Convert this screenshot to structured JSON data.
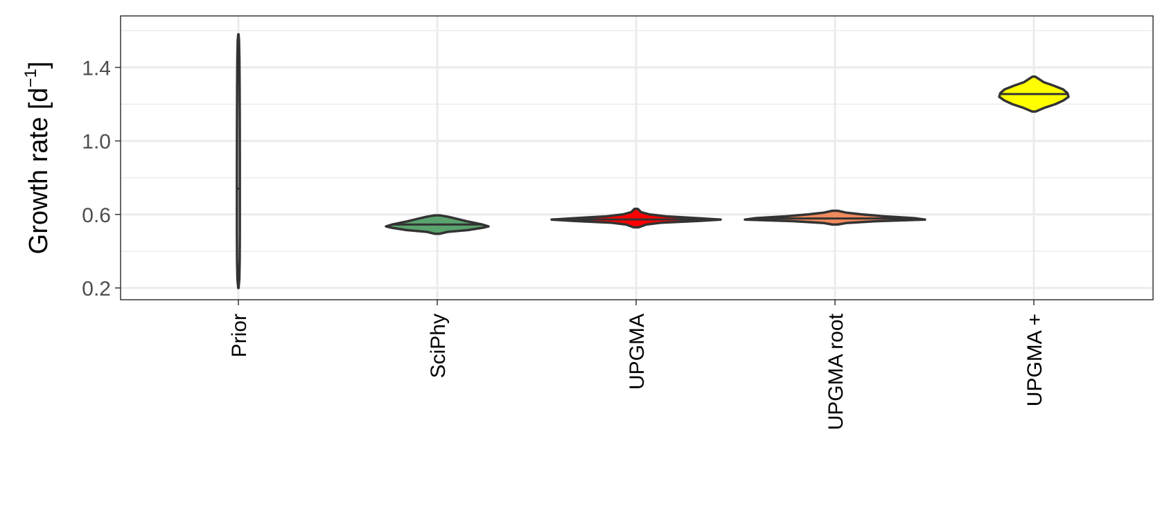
{
  "chart_data": {
    "type": "violin",
    "ylabel": "Growth rate [d",
    "ylabel_superscript": "−1",
    "ylabel_suffix": "]",
    "xlabel": "",
    "ylim": [
      0.14,
      1.67
    ],
    "y_major_ticks": [
      0.2,
      0.6,
      1.0,
      1.4
    ],
    "y_minor_ticks": [
      0.4,
      0.8,
      1.2,
      1.6
    ],
    "y_tick_labels": [
      "0.2",
      "0.6",
      "1.0",
      "1.4"
    ],
    "grid": true,
    "categories": [
      "Prior",
      "SciPhy",
      "UPGMA",
      "UPGMA root",
      "UPGMA +"
    ],
    "violins": [
      {
        "category": "Prior",
        "fill": "#ffffff",
        "median": 0.74,
        "min": 0.2,
        "max": 1.58,
        "profile": [
          [
            0.2,
            0.05
          ],
          [
            0.25,
            0.28
          ],
          [
            0.35,
            0.38
          ],
          [
            0.5,
            0.42
          ],
          [
            0.7,
            0.43
          ],
          [
            0.9,
            0.42
          ],
          [
            1.1,
            0.4
          ],
          [
            1.3,
            0.36
          ],
          [
            1.45,
            0.3
          ],
          [
            1.55,
            0.18
          ],
          [
            1.58,
            0.05
          ]
        ]
      },
      {
        "category": "SciPhy",
        "fill": "#5aa36e",
        "median": 0.545,
        "min": 0.495,
        "max": 0.595,
        "profile": [
          [
            0.495,
            0.05
          ],
          [
            0.505,
            0.2
          ],
          [
            0.515,
            0.6
          ],
          [
            0.528,
            0.9
          ],
          [
            0.535,
            1.0
          ],
          [
            0.545,
            0.88
          ],
          [
            0.56,
            0.62
          ],
          [
            0.575,
            0.4
          ],
          [
            0.588,
            0.2
          ],
          [
            0.595,
            0.05
          ]
        ]
      },
      {
        "category": "UPGMA",
        "fill": "#ff0000",
        "median": 0.573,
        "min": 0.53,
        "max": 0.63,
        "profile": [
          [
            0.53,
            0.03
          ],
          [
            0.545,
            0.12
          ],
          [
            0.555,
            0.3
          ],
          [
            0.565,
            0.75
          ],
          [
            0.572,
            1.0
          ],
          [
            0.58,
            0.72
          ],
          [
            0.59,
            0.35
          ],
          [
            0.6,
            0.16
          ],
          [
            0.612,
            0.06
          ],
          [
            0.63,
            0.02
          ]
        ]
      },
      {
        "category": "UPGMA root",
        "fill": "#f08a5d",
        "median": 0.578,
        "min": 0.545,
        "max": 0.62,
        "profile": [
          [
            0.545,
            0.03
          ],
          [
            0.553,
            0.12
          ],
          [
            0.563,
            0.45
          ],
          [
            0.572,
            1.0
          ],
          [
            0.58,
            0.88
          ],
          [
            0.59,
            0.55
          ],
          [
            0.6,
            0.3
          ],
          [
            0.61,
            0.12
          ],
          [
            0.62,
            0.03
          ]
        ]
      },
      {
        "category": "UPGMA +",
        "fill": "#ffff00",
        "median": 1.255,
        "min": 1.16,
        "max": 1.35,
        "profile": [
          [
            1.16,
            0.05
          ],
          [
            1.18,
            0.3
          ],
          [
            1.2,
            0.62
          ],
          [
            1.22,
            0.85
          ],
          [
            1.24,
            1.0
          ],
          [
            1.26,
            0.97
          ],
          [
            1.28,
            0.85
          ],
          [
            1.3,
            0.58
          ],
          [
            1.32,
            0.28
          ],
          [
            1.34,
            0.12
          ],
          [
            1.35,
            0.04
          ]
        ]
      }
    ]
  }
}
